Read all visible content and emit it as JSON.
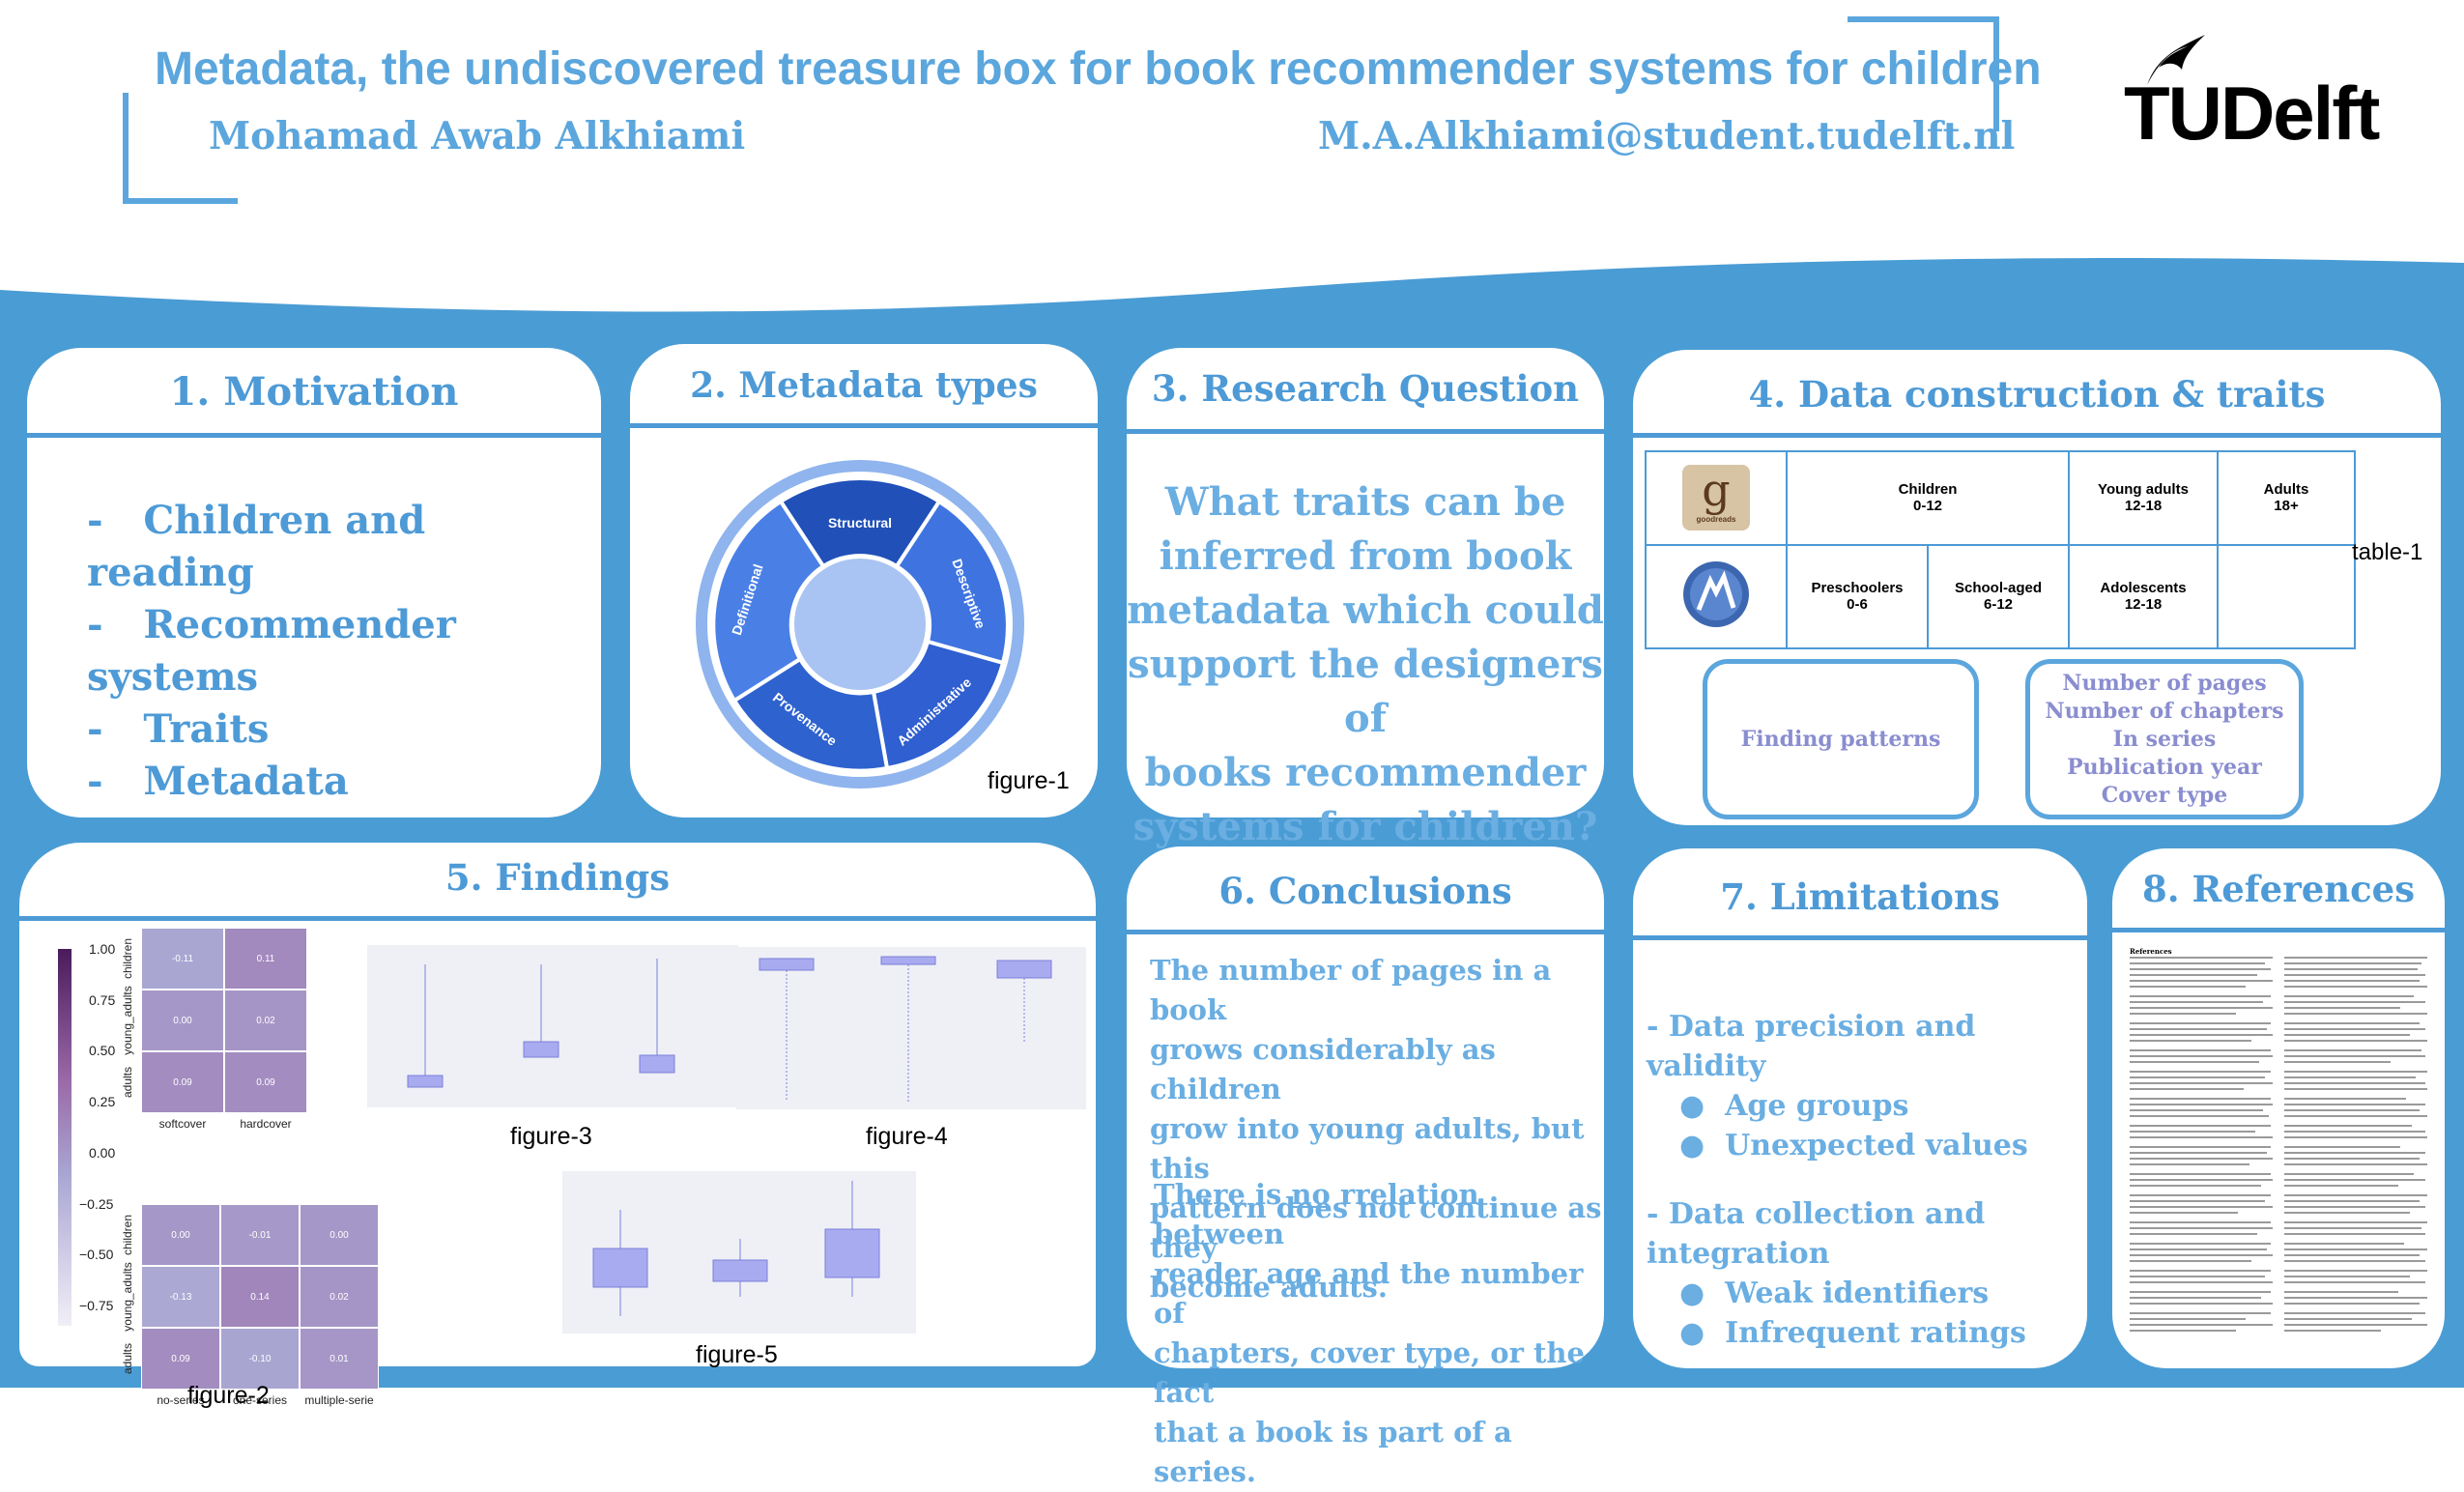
{
  "header": {
    "title": "Metadata, the undiscovered treasure box for book recommender systems for children",
    "author": "Mohamad Awab Alkhiami",
    "email": "M.A.Alkhiami@student.tudelft.nl",
    "logo_text": "TUDelft"
  },
  "colors": {
    "primary": "#4d9ad6",
    "background_band": "#4a9cd4",
    "heatmap_dark": "#5b2a74",
    "heatmap_light": "#f2eef7"
  },
  "motivation": {
    "heading": "1. Motivation",
    "items": [
      "Children and reading",
      "Recommender systems",
      "Traits",
      "Metadata"
    ],
    "bullet": "-"
  },
  "metadata_types": {
    "heading": "2. Metadata types",
    "segments": [
      "Structural",
      "Descriptive",
      "Administrative",
      "Provenance",
      "Definitional"
    ],
    "caption": "figure-1"
  },
  "research_question": {
    "heading": "3. Research Question",
    "lines": [
      "What traits can be",
      "inferred from book",
      "metadata which could",
      "support the designers of",
      "books recommender",
      "systems for children?"
    ]
  },
  "data_construction": {
    "heading": "4. Data construction & traits",
    "row1": [
      {
        "name": "Children",
        "range": "0-12"
      },
      {
        "name": "Young adults",
        "range": "12-18"
      },
      {
        "name": "Adults",
        "range": "18+"
      }
    ],
    "row2": [
      {
        "name": "Preschoolers",
        "range": "0-6"
      },
      {
        "name": "School-aged",
        "range": "6-12"
      },
      {
        "name": "Adolescents",
        "range": "12-18"
      }
    ],
    "logo1_letter": "g",
    "logo1_text": "goodreads",
    "table_caption": "table-1",
    "pill_left": "Finding patterns",
    "pill_right": [
      "Number of pages",
      "Number of chapters",
      "In series",
      "Publication year",
      "Cover type"
    ]
  },
  "findings": {
    "heading": "5. Findings",
    "fig2_caption": "figure-2",
    "fig3_caption": "figure-3",
    "fig4_caption": "figure-4",
    "fig5_caption": "figure-5",
    "colorbar_ticks": [
      "1.00",
      "0.75",
      "0.50",
      "0.25",
      "0.00",
      "−0.25",
      "−0.50",
      "−0.75"
    ]
  },
  "conclusions": {
    "heading": "6. Conclusions",
    "para1": [
      "The number of pages in a book",
      "grows considerably as children",
      "grow into young adults, but this",
      "pattern does not continue as they",
      "become adults."
    ],
    "para2_prefix": "There is ",
    "para2_underlined": "no",
    "para2_rest_first": " rrelation between",
    "para2": [
      "reader age and the number of",
      "chapters, cover type, or the fact",
      "that a book is part of a series."
    ]
  },
  "limitations": {
    "heading": "7. Limitations",
    "groups": [
      {
        "title": "- Data precision and validity",
        "items": [
          "Age groups",
          "Unexpected values"
        ]
      },
      {
        "title": "- Data collection and integration",
        "items": [
          "Weak identifiers",
          "Infrequent ratings"
        ]
      }
    ],
    "bullet": "●"
  },
  "references": {
    "heading": "8. References",
    "label": "References"
  },
  "chart_data": [
    {
      "type": "heatmap",
      "rows": [
        "children",
        "young_adults",
        "adults"
      ],
      "columns": [
        "softcover",
        "hardcover"
      ],
      "values": [
        [
          -0.11,
          0.11
        ],
        [
          0.0,
          0.02
        ],
        [
          0.09,
          0.09
        ]
      ],
      "row_labels_visible": [
        "children",
        "young_adults",
        "adults"
      ],
      "col_labels_visible": [
        "softcover",
        "hardcover"
      ],
      "value_labels": [
        [
          "-0.11",
          "0.11"
        ],
        [
          "0.00",
          "0.02"
        ],
        [
          "0.09",
          "0.09"
        ]
      ]
    },
    {
      "type": "heatmap",
      "rows": [
        "children",
        "young_adults",
        "adults"
      ],
      "columns": [
        "no-series",
        "one-series",
        "multiple-serie"
      ],
      "values": [
        [
          0.0,
          -0.01,
          0.0
        ],
        [
          -0.13,
          0.14,
          0.02
        ],
        [
          0.09,
          -0.1,
          0.01
        ]
      ],
      "value_labels": [
        [
          "0.00",
          "-0.01",
          "0.00"
        ],
        [
          "-0.13",
          "0.14",
          "0.02"
        ],
        [
          "0.09",
          "-0.10",
          "0.01"
        ]
      ],
      "colorbar_range": [
        -0.85,
        1.0
      ]
    }
  ]
}
